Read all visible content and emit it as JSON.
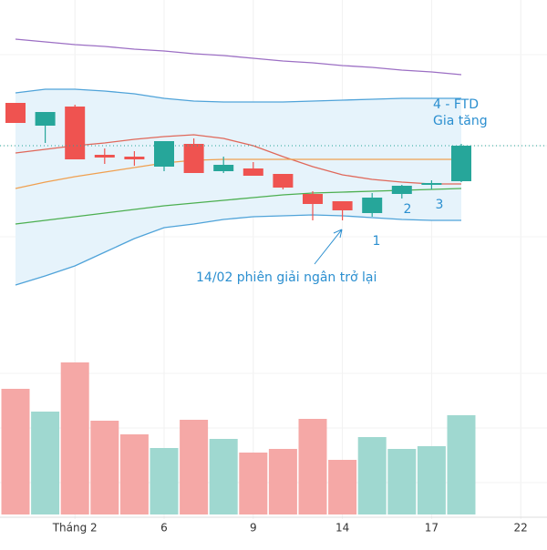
{
  "chart_data": {
    "type": "candlestick",
    "categories": [
      null,
      null,
      "Tháng 2",
      null,
      null,
      "6",
      null,
      null,
      "9",
      null,
      null,
      "14",
      null,
      null,
      "17",
      null,
      null,
      "22"
    ],
    "open": [
      247,
      222,
      243,
      190,
      188,
      177,
      202,
      172,
      175,
      169,
      147,
      139,
      126,
      147,
      157,
      161,
      null,
      null
    ],
    "high": [
      247,
      237,
      245,
      197,
      194,
      205,
      208,
      188,
      182,
      169,
      150,
      139,
      148,
      157,
      162,
      202,
      null,
      null
    ],
    "low": [
      225,
      203,
      185,
      180,
      178,
      172,
      170,
      170,
      167,
      152,
      118,
      118,
      122,
      142,
      152,
      160,
      null,
      null
    ],
    "close": [
      225,
      237,
      185,
      187,
      185,
      205,
      170,
      179,
      167,
      154,
      136,
      129,
      143,
      156,
      159,
      200,
      null,
      null
    ],
    "ylim": [
      0,
      360
    ],
    "up_color": "#26a69a",
    "down_color": "#ef5350",
    "lines": [
      {
        "color": "#9c6fc4",
        "values": [
          317,
          314,
          311,
          309,
          306,
          304,
          301,
          299,
          296,
          293,
          291,
          288,
          286,
          283,
          281,
          278,
          null,
          null
        ]
      },
      {
        "color": "#4fa3d9",
        "values": [
          258,
          262,
          262,
          260,
          257,
          252,
          249,
          248,
          248,
          248,
          249,
          250,
          251,
          252,
          252,
          252,
          null,
          null
        ]
      },
      {
        "color": "#4fa3d9",
        "values": [
          47,
          57,
          68,
          83,
          98,
          110,
          114,
          119,
          122,
          123,
          124,
          123,
          121,
          119,
          118,
          118,
          null,
          null
        ]
      },
      {
        "color": "#e0685a",
        "values": [
          192,
          196,
          200,
          203,
          207,
          210,
          212,
          208,
          200,
          188,
          177,
          168,
          163,
          160,
          158,
          158,
          null,
          null
        ]
      },
      {
        "color": "#f0a050",
        "values": [
          153,
          160,
          166,
          171,
          176,
          181,
          184,
          185,
          185,
          185,
          185,
          185,
          185,
          185,
          185,
          185,
          null,
          null
        ]
      },
      {
        "color": "#4caf50",
        "values": [
          114,
          118,
          122,
          126,
          130,
          134,
          137,
          140,
          143,
          146,
          148,
          149,
          150,
          151,
          152,
          153,
          null,
          null
        ]
      }
    ],
    "band_color": "#e6f3fb",
    "volume": {
      "values": [
        138,
        113,
        167,
        103,
        88,
        73,
        104,
        83,
        68,
        72,
        105,
        60,
        85,
        72,
        75,
        109,
        null,
        null
      ],
      "ylim": [
        0,
        200
      ],
      "up_color": "#9fd8d0",
      "down_color": "#f5a8a6"
    },
    "annotations": [
      "4 - FTD",
      "Gia tăng",
      "1",
      "2",
      "3",
      "14/02 phiên giải ngân trở lại"
    ],
    "grid": true
  }
}
